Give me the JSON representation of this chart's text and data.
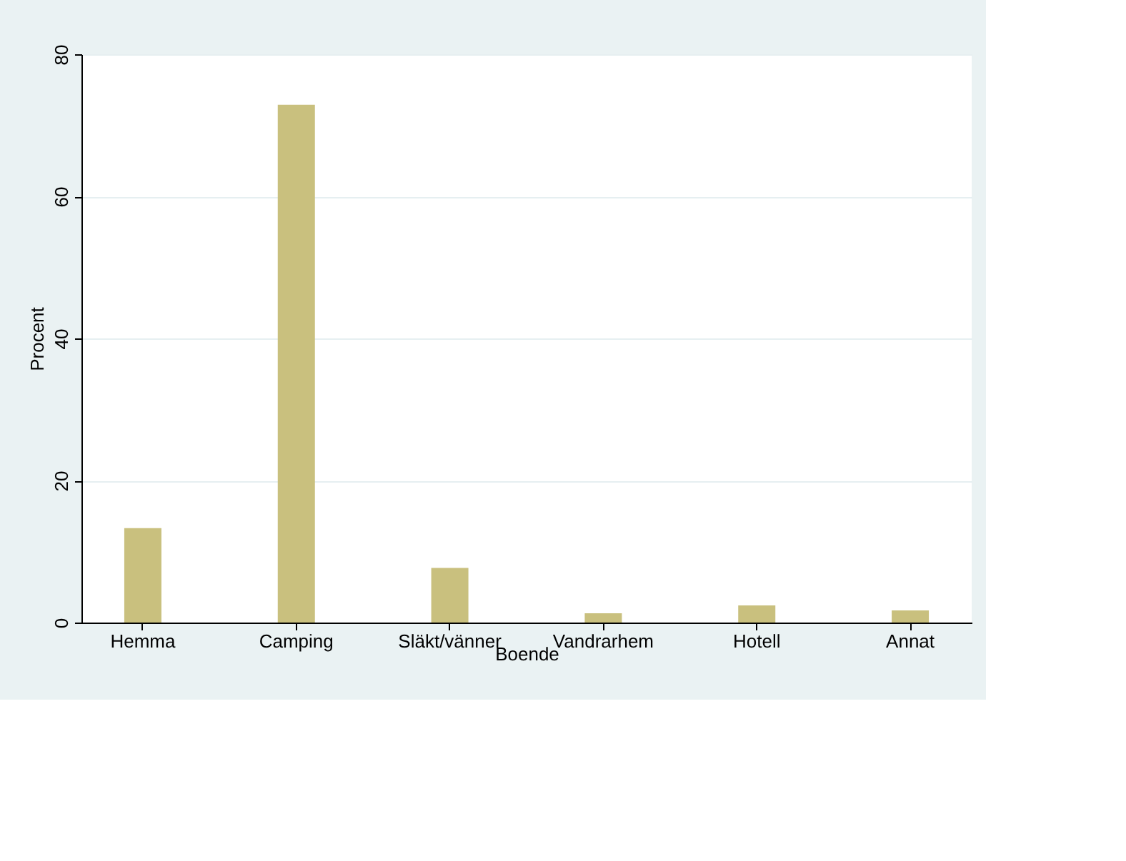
{
  "chart_data": {
    "type": "bar",
    "xlabel": "Boende",
    "ylabel": "Procent",
    "categories": [
      "Hemma",
      "Camping",
      "Släkt/vänner",
      "Vandrarhem",
      "Hotell",
      "Annat"
    ],
    "values": [
      13.3,
      72.9,
      7.7,
      1.3,
      2.4,
      1.7
    ],
    "color": "#c9c07e",
    "ylim": [
      0,
      80
    ],
    "yticks": [
      0,
      20,
      40,
      60,
      80
    ],
    "grid": "y"
  }
}
